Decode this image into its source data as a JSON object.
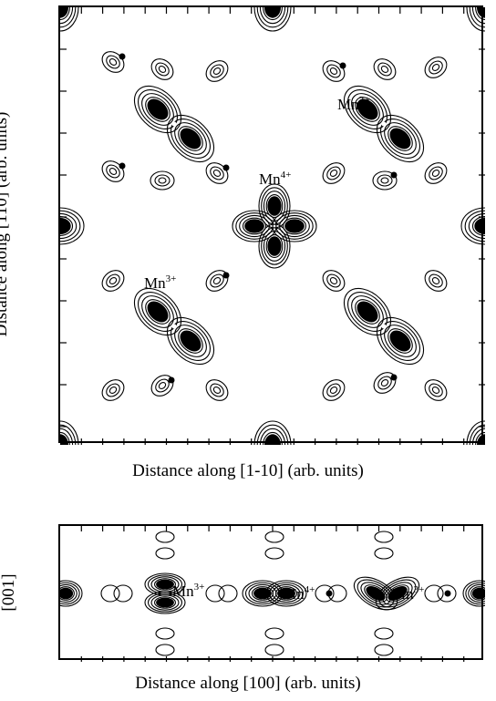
{
  "top_panel": {
    "xlabel": "Distance along [1-10] (arb. units)",
    "ylabel": "Distance along [110] (arb. units)",
    "sites": [
      {
        "base": "Mn",
        "charge": "3+"
      },
      {
        "base": "Mn",
        "charge": "4+"
      },
      {
        "base": "Mn",
        "charge": "3+"
      }
    ]
  },
  "bottom_panel": {
    "xlabel": "Distance along [100] (arb. units)",
    "ylabel": "[001]",
    "sites": [
      {
        "base": "Mn",
        "charge": "3+"
      },
      {
        "base": "Mn",
        "charge": "4+"
      },
      {
        "base": "Mn",
        "charge": "3+"
      }
    ]
  },
  "colors": {
    "ink": "#000000",
    "background": "#ffffff"
  }
}
